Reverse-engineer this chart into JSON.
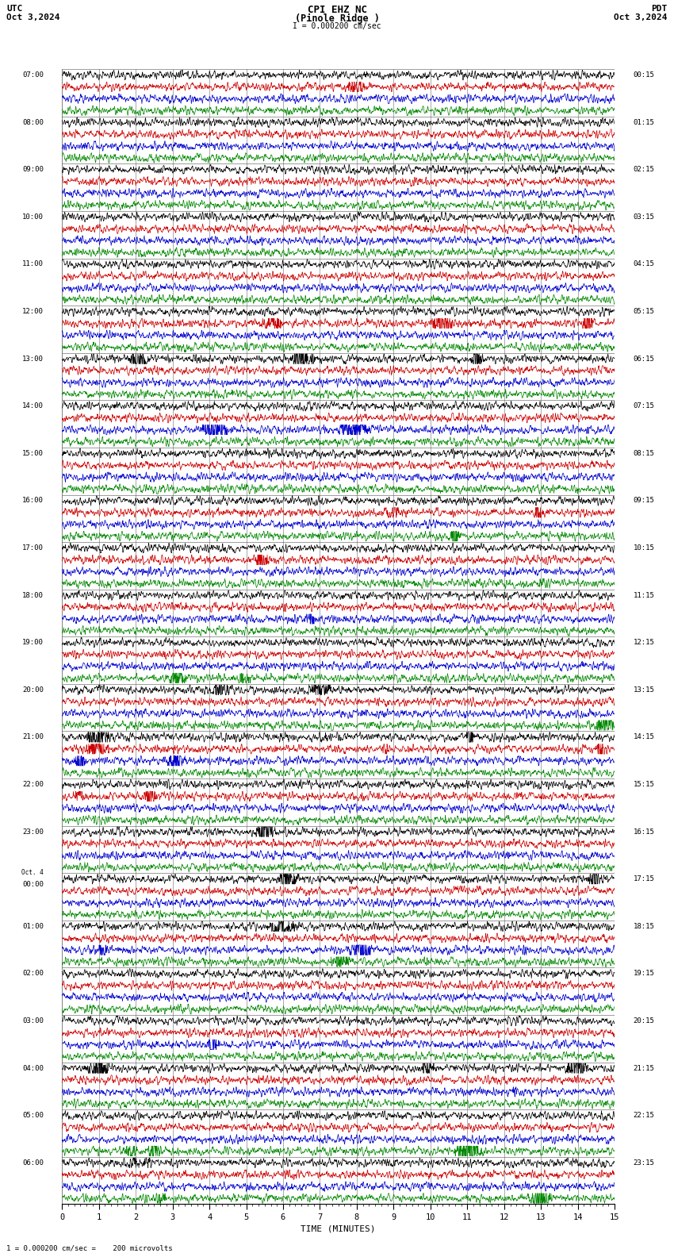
{
  "title_line1": "CPI EHZ NC",
  "title_line2": "(Pinole Ridge )",
  "scale_label": "I = 0.000200 cm/sec",
  "utc_label": "UTC",
  "utc_date": "Oct 3,2024",
  "pdt_label": "PDT",
  "pdt_date": "Oct 3,2024",
  "xlabel": "TIME (MINUTES)",
  "footer": "1 = 0.000200 cm/sec =    200 microvolts",
  "trace_colors": [
    "#000000",
    "#cc0000",
    "#0000cc",
    "#008800"
  ],
  "bg_color": "#ffffff",
  "grid_color": "#888888",
  "xlim": [
    0,
    15
  ],
  "xticks": [
    0,
    1,
    2,
    3,
    4,
    5,
    6,
    7,
    8,
    9,
    10,
    11,
    12,
    13,
    14,
    15
  ],
  "utc_times": [
    "07:00",
    "08:00",
    "09:00",
    "10:00",
    "11:00",
    "12:00",
    "13:00",
    "14:00",
    "15:00",
    "16:00",
    "17:00",
    "18:00",
    "19:00",
    "20:00",
    "21:00",
    "22:00",
    "23:00",
    "00:00",
    "01:00",
    "02:00",
    "03:00",
    "04:00",
    "05:00",
    "06:00"
  ],
  "utc_special": [
    17
  ],
  "pdt_times": [
    "00:15",
    "01:15",
    "02:15",
    "03:15",
    "04:15",
    "05:15",
    "06:15",
    "07:15",
    "08:15",
    "09:15",
    "10:15",
    "11:15",
    "12:15",
    "13:15",
    "14:15",
    "15:15",
    "16:15",
    "17:15",
    "18:15",
    "19:15",
    "20:15",
    "21:15",
    "22:15",
    "23:15"
  ],
  "num_groups": 24,
  "traces_per_group": 4,
  "noise_amp": 0.28,
  "event_prob": 0.25,
  "seed": 12345
}
